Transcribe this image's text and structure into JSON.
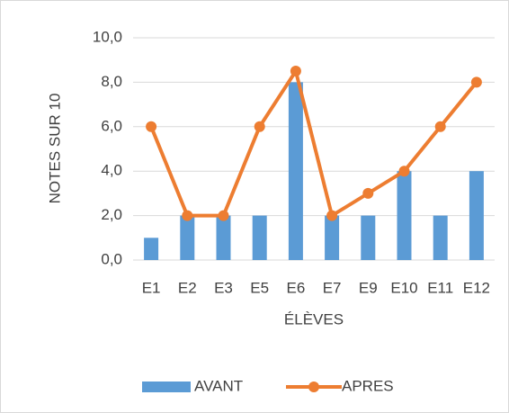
{
  "chart_data": {
    "type": "combo",
    "categories": [
      "E1",
      "E2",
      "E3",
      "E5",
      "E6",
      "E7",
      "E9",
      "E10",
      "E11",
      "E12"
    ],
    "series": [
      {
        "name": "AVANT",
        "type": "bar",
        "color": "#5b9bd5",
        "values": [
          1,
          2,
          2,
          2,
          8,
          2,
          2,
          4,
          2,
          4
        ]
      },
      {
        "name": "APRES",
        "type": "line",
        "color": "#ed7d31",
        "values": [
          6,
          2,
          2,
          6,
          8.5,
          2,
          3,
          4,
          6,
          8
        ]
      }
    ],
    "ylabel": "NOTES SUR 10",
    "xlabel": "ÉLÈVES",
    "ylim": [
      0,
      10
    ],
    "yticks": [
      {
        "value": 0,
        "label": "0,0"
      },
      {
        "value": 2,
        "label": "2,0"
      },
      {
        "value": 4,
        "label": "4,0"
      },
      {
        "value": 6,
        "label": "6,0"
      },
      {
        "value": 8,
        "label": "8,0"
      },
      {
        "value": 10,
        "label": "10,0"
      }
    ],
    "grid": true,
    "legend": "bottom"
  }
}
